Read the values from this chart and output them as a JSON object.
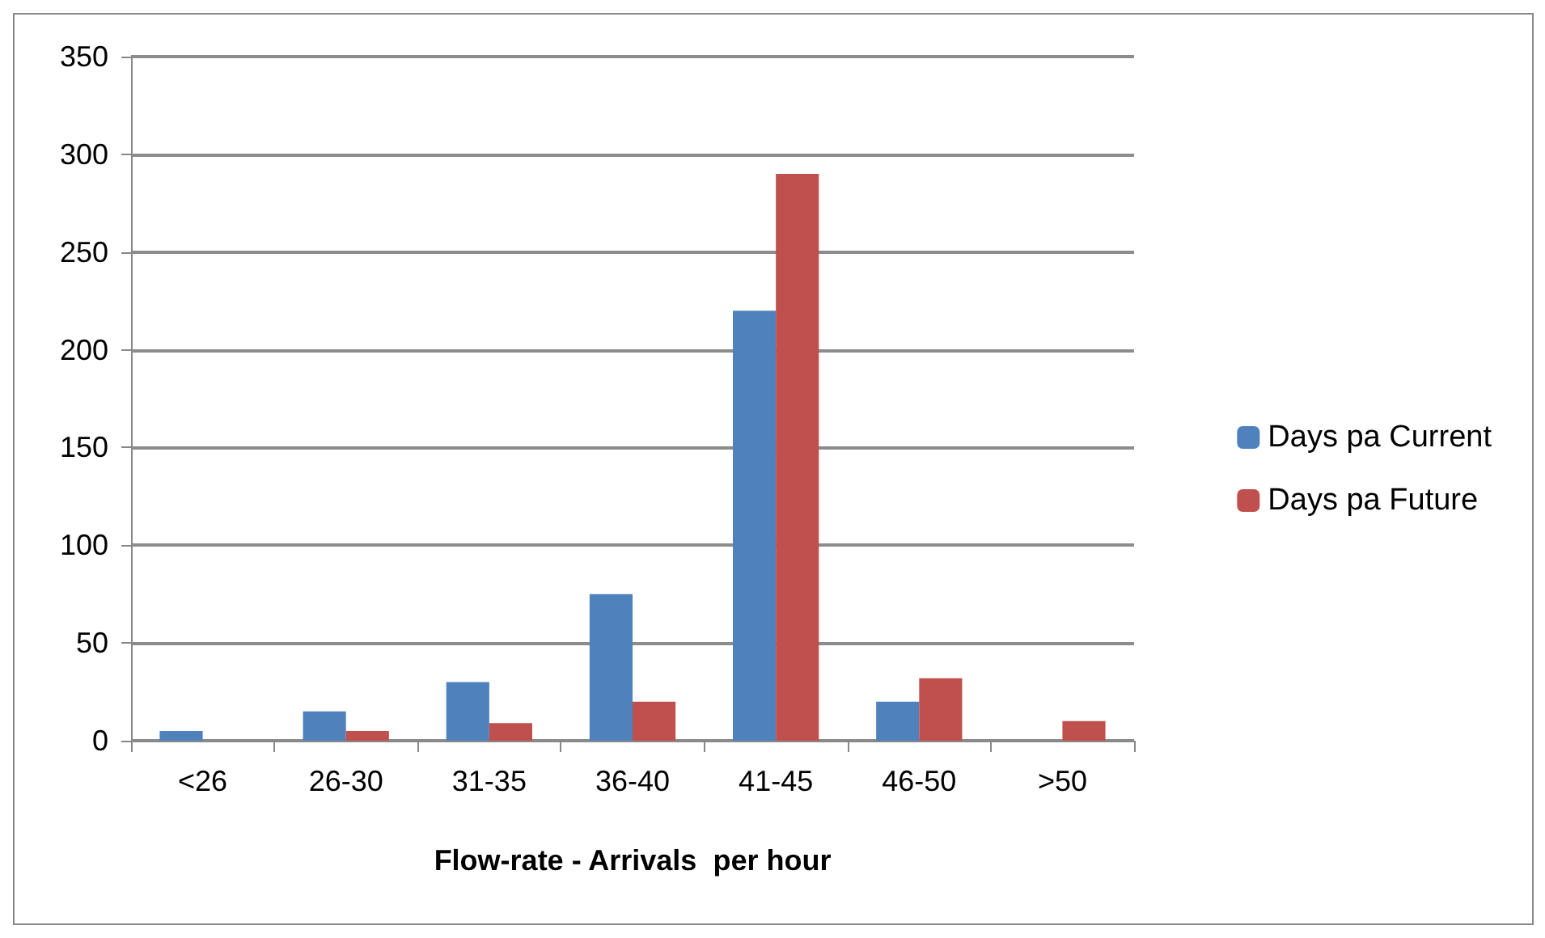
{
  "chart_data": {
    "type": "bar",
    "xlabel": "Flow-rate - Arrivals  per hour",
    "categories": [
      "<26",
      "26-30",
      "31-35",
      "36-40",
      "41-45",
      "46-50",
      ">50"
    ],
    "series": [
      {
        "name": "Days pa Current",
        "color": "#4f81bd",
        "values": [
          5,
          15,
          30,
          75,
          220,
          20,
          null
        ]
      },
      {
        "name": "Days pa Future",
        "color": "#c0504d",
        "values": [
          null,
          5,
          9,
          20,
          290,
          32,
          10
        ]
      }
    ],
    "ylim": [
      0,
      350
    ],
    "yticks": [
      0,
      50,
      100,
      150,
      200,
      250,
      300,
      350
    ],
    "grid": "y",
    "legend": "right"
  }
}
